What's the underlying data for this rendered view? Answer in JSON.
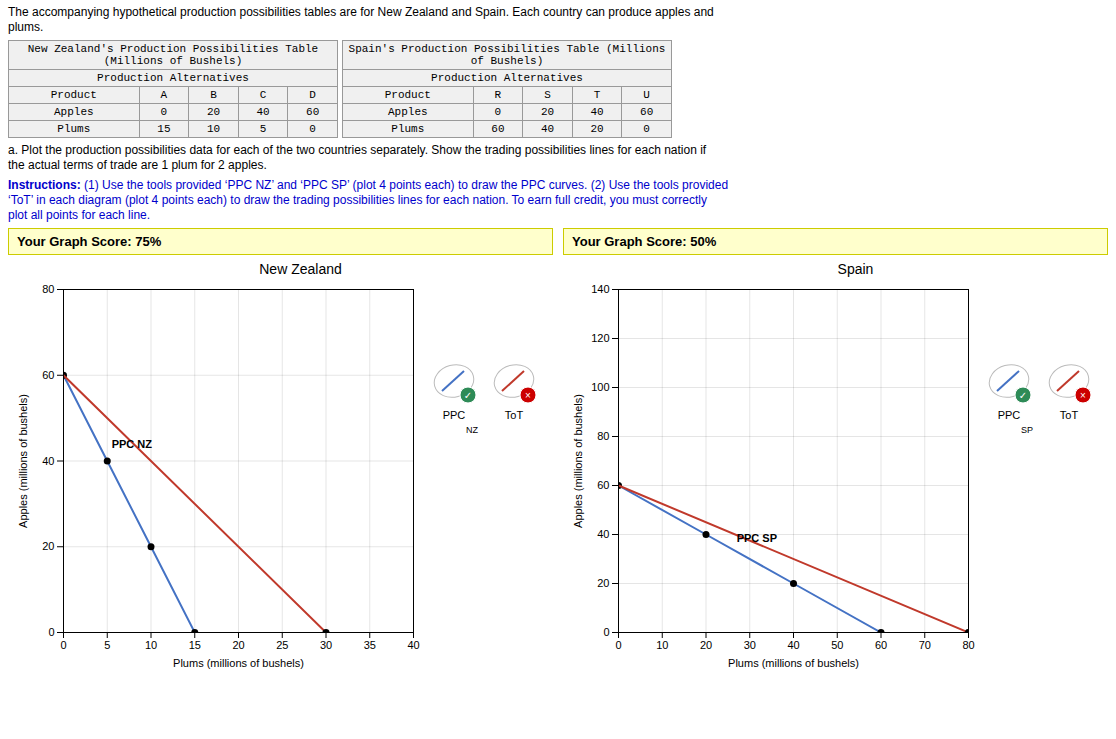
{
  "page": {
    "intro": "The accompanying hypothetical production possibilities tables are for New Zealand and Spain. Each country can produce apples and\nplums.",
    "tables": [
      {
        "title": "New Zealand's Production Possibilities Table\n(Millions of Bushels)",
        "subheader": "Production Alternatives",
        "columns": [
          "Product",
          "A",
          "B",
          "C",
          "D"
        ],
        "rows": [
          {
            "name": "Apples",
            "values": [
              0,
              20,
              40,
              60
            ]
          },
          {
            "name": "Plums",
            "values": [
              15,
              10,
              5,
              0
            ]
          }
        ]
      },
      {
        "title": "Spain's Production Possibilities Table (Millions\nof Bushels)",
        "subheader": "Production Alternatives",
        "columns": [
          "Product",
          "R",
          "S",
          "T",
          "U"
        ],
        "rows": [
          {
            "name": "Apples",
            "values": [
              0,
              20,
              40,
              60
            ]
          },
          {
            "name": "Plums",
            "values": [
              60,
              40,
              20,
              0
            ]
          }
        ]
      }
    ],
    "question": "a. Plot the production possibilities data for each of the two countries separately. Show the trading possibilities lines for each nation if\nthe actual terms of trade are 1 plum for 2 apples.",
    "instructions": {
      "bold": "Instructions:",
      "text": " (1) Use the tools provided ‘PPC NZ’ and ‘PPC SP’ (plot 4 points each) to draw the PPC curves. (2) Use the tools provided\n‘ToT’ in each diagram (plot 4 points each) to draw the trading possibilities lines for each nation. To earn full credit, you must correctly\nplot all points for each line.",
      "color": "#0000CC"
    }
  },
  "chart_data": [
    {
      "type": "line",
      "title": "New Zealand",
      "subtitle": "Your Graph Score: 75%",
      "x_label": "Plums (millions of bushels)",
      "y_label": "Apples (millions of bushels)",
      "xlim": [
        0,
        40
      ],
      "ylim": [
        0,
        80
      ],
      "xticks": [
        0,
        5,
        10,
        15,
        20,
        25,
        30,
        35,
        40
      ],
      "yticks": [
        0,
        20,
        40,
        60,
        80
      ],
      "grid": true,
      "legend": "right",
      "legend_title": "NZ",
      "series": [
        {
          "name": "PPC",
          "color": "#4472C4",
          "marker": "circle",
          "marker_color": "#000000",
          "badge": "✓",
          "badge_color": "#2E8B57",
          "x": [
            0,
            5,
            10,
            15
          ],
          "values": [
            60,
            40,
            20,
            0
          ]
        },
        {
          "name": "ToT",
          "color": "#C0392B",
          "marker": "end",
          "marker_color": "#000000",
          "badge": "×",
          "badge_color": "#CC0000",
          "x": [
            0,
            30
          ],
          "values": [
            60,
            0
          ]
        }
      ],
      "annotations": [
        {
          "text": "PPC NZ",
          "x": 5.5,
          "y": 43
        }
      ]
    },
    {
      "type": "line",
      "title": "Spain",
      "subtitle": "Your Graph Score: 50%",
      "x_label": "Plums (millions of bushels)",
      "y_label": "Apples (millions of bushels)",
      "xlim": [
        0,
        80
      ],
      "ylim": [
        0,
        140
      ],
      "xticks": [
        0,
        10,
        20,
        30,
        40,
        50,
        60,
        70,
        80
      ],
      "yticks": [
        0,
        20,
        40,
        60,
        80,
        100,
        120,
        140
      ],
      "grid": true,
      "legend": "right",
      "legend_title": "SP",
      "series": [
        {
          "name": "PPC",
          "color": "#4472C4",
          "marker": "circle",
          "marker_color": "#000000",
          "badge": "✓",
          "badge_color": "#2E8B57",
          "x": [
            0,
            20,
            40,
            60
          ],
          "values": [
            60,
            40,
            20,
            0
          ]
        },
        {
          "name": "ToT",
          "color": "#C0392B",
          "marker": "end",
          "marker_color": "#000000",
          "badge": "×",
          "badge_color": "#CC0000",
          "x": [
            0,
            80
          ],
          "values": [
            60,
            0
          ]
        }
      ],
      "annotations": [
        {
          "text": "PPC SP",
          "x": 27,
          "y": 37
        }
      ]
    }
  ]
}
